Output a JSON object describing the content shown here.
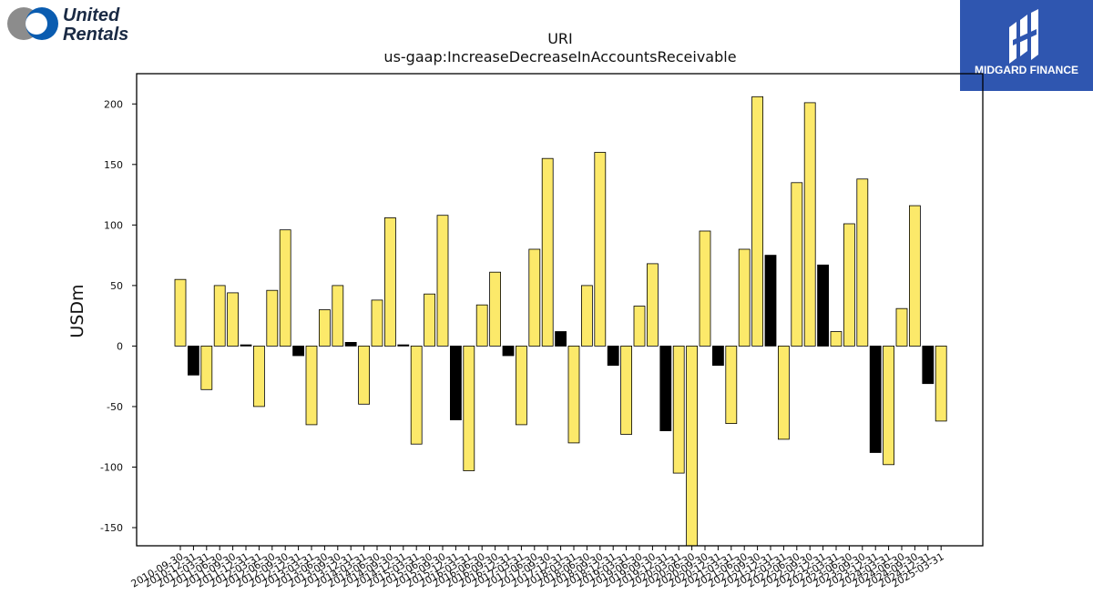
{
  "brand_left": {
    "line1": "United",
    "line2": "Rentals"
  },
  "brand_right": {
    "name": "MIDGARD FINANCE"
  },
  "colors": {
    "positive_bar": "#fce96a",
    "negative_bar": "#000000",
    "highlight_bar": "#000000",
    "brand_blue": "#2f56b0"
  },
  "chart_data": {
    "type": "bar",
    "title": "URI",
    "subtitle": "us-gaap:IncreaseDecreaseInAccountsReceivable",
    "xlabel": "",
    "ylabel": "USDm",
    "ylim": [
      -165,
      225
    ],
    "yticks": [
      -150,
      -100,
      -50,
      0,
      50,
      100,
      150,
      200
    ],
    "grid": false,
    "categories": [
      "2010-09-30",
      "2010-12-31",
      "2011-03-31",
      "2011-06-30",
      "2011-09-30",
      "2011-12-31",
      "2012-03-31",
      "2012-06-30",
      "2012-09-30",
      "2012-12-31",
      "2013-03-31",
      "2013-06-30",
      "2013-09-30",
      "2013-12-31",
      "2014-03-31",
      "2014-06-30",
      "2014-09-30",
      "2014-12-31",
      "2015-03-31",
      "2015-06-30",
      "2015-09-30",
      "2015-12-31",
      "2016-03-31",
      "2016-06-30",
      "2016-09-30",
      "2016-12-31",
      "2017-03-31",
      "2017-06-30",
      "2017-09-30",
      "2017-12-31",
      "2018-03-31",
      "2018-06-30",
      "2018-09-30",
      "2018-12-31",
      "2019-03-31",
      "2019-06-30",
      "2019-09-30",
      "2019-12-31",
      "2020-03-31",
      "2020-06-30",
      "2020-09-30",
      "2020-12-31",
      "2021-03-31",
      "2021-06-30",
      "2021-09-30",
      "2021-12-31",
      "2022-03-31",
      "2022-06-30",
      "2022-09-30",
      "2022-12-31",
      "2023-03-31",
      "2023-06-30",
      "2023-09-30",
      "2023-12-31",
      "2024-03-31",
      "2024-06-30",
      "2024-09-30",
      "2024-12-31",
      "2025-03-31"
    ],
    "values": [
      55,
      -24,
      -36,
      50,
      44,
      1,
      -50,
      46,
      96,
      -8,
      -65,
      30,
      50,
      3,
      -48,
      38,
      106,
      1,
      -81,
      43,
      108,
      -61,
      -103,
      34,
      61,
      -8,
      -65,
      80,
      155,
      12,
      -80,
      50,
      160,
      -16,
      -73,
      33,
      68,
      -70,
      -105,
      -170,
      95,
      -16,
      -64,
      80,
      206,
      75,
      -77,
      135,
      201,
      67,
      12,
      101,
      138,
      -88,
      -98,
      31,
      116,
      -31,
      -62
    ],
    "highlight": [
      false,
      true,
      false,
      false,
      false,
      true,
      false,
      false,
      false,
      true,
      false,
      false,
      false,
      true,
      false,
      false,
      false,
      true,
      false,
      false,
      false,
      true,
      false,
      false,
      false,
      true,
      false,
      false,
      false,
      true,
      false,
      false,
      false,
      true,
      false,
      false,
      false,
      true,
      false,
      false,
      false,
      true,
      false,
      false,
      false,
      true,
      false,
      false,
      false,
      true,
      false,
      false,
      false,
      true,
      false,
      false,
      false,
      true,
      false
    ]
  }
}
